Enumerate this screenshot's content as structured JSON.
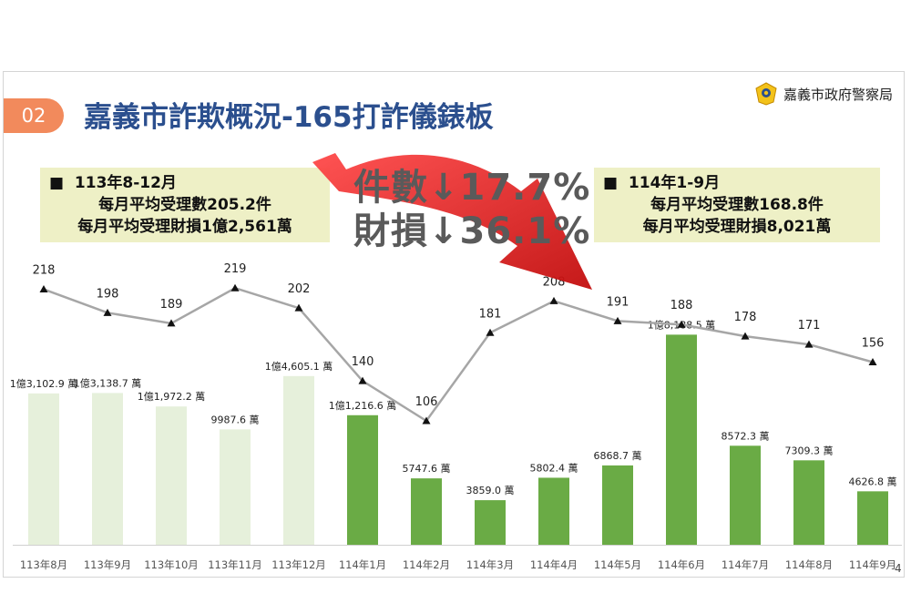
{
  "header": {
    "section_number": "02",
    "title": "嘉義市詐欺概況-165打詐儀錶板",
    "agency": "嘉義市政府警察局"
  },
  "summary_left": {
    "period": "113年8-12月",
    "cases": "每月平均受理數205.2件",
    "loss": "每月平均受理財損1億2,561萬"
  },
  "summary_right": {
    "period": "114年1-9月",
    "cases": "每月平均受理數168.8件",
    "loss": "每月平均受理財損8,021萬"
  },
  "change": {
    "cases": "件數↓17.7%",
    "loss": "財損↓36.1%"
  },
  "page_number": "4",
  "colors": {
    "pill": "#f28a5c",
    "title": "#2b4f8e",
    "box_bg": "#eef0c6",
    "bar_2024": "#e6f0db",
    "bar_2025": "#6aab45",
    "line": "#a6a6a6",
    "arrow": "#e02020"
  },
  "chart_data": {
    "type": "bar+line",
    "categories": [
      "113年8月",
      "113年9月",
      "113年10月",
      "113年11月",
      "113年12月",
      "114年1月",
      "114年2月",
      "114年3月",
      "114年4月",
      "114年5月",
      "114年6月",
      "114年7月",
      "114年8月",
      "114年9月"
    ],
    "series": [
      {
        "name": "財損(萬)",
        "type": "bar",
        "values": [
          13102.9,
          13138.7,
          11972.2,
          9987.6,
          14605.1,
          11216.6,
          5747.6,
          3859.0,
          5802.4,
          6868.7,
          18188.5,
          8572.3,
          7309.3,
          4626.8
        ],
        "labels": [
          "1億3,102.9 萬",
          "1億3,138.7 萬",
          "1億1,972.2 萬",
          "9987.6 萬",
          "1億4,605.1 萬",
          "1億1,216.6 萬",
          "5747.6 萬",
          "3859.0 萬",
          "5802.4 萬",
          "6868.7 萬",
          "1億8,188.5 萬",
          "8572.3 萬",
          "7309.3 萬",
          "4626.8 萬"
        ]
      },
      {
        "name": "件數",
        "type": "line",
        "values": [
          218,
          198,
          189,
          219,
          202,
          140,
          106,
          181,
          208,
          191,
          188,
          178,
          171,
          156
        ]
      }
    ],
    "title": "",
    "xlabel": "",
    "ylabel": ""
  }
}
